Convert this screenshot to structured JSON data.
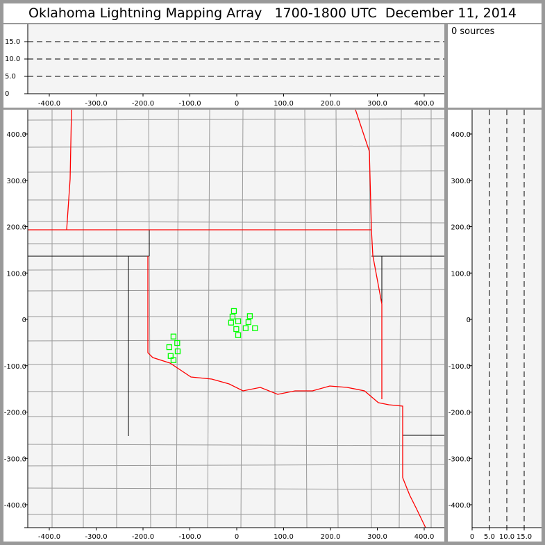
{
  "title": "Oklahoma Lightning Mapping Array   1700-1800 UTC  December 11, 2014",
  "source_count": "0 sources",
  "top_panel": {
    "y_ticks": [
      "0",
      "5.0",
      "10.0",
      "15.0"
    ],
    "x_ticks": [
      "-400.0",
      "-300.0",
      "-200.0",
      "-100.0",
      "0",
      "100.0",
      "200.0",
      "300.0",
      "400.0"
    ]
  },
  "map_panel": {
    "x_ticks": [
      "-400.0",
      "-300.0",
      "-200.0",
      "-100.0",
      "0",
      "100.0",
      "200.0",
      "300.0",
      "400.0"
    ],
    "y_ticks": [
      "400.0",
      "300.0",
      "200.0",
      "100.0",
      "0",
      "-100.0",
      "-200.0",
      "-300.0",
      "-400.0"
    ],
    "station_color": "#00ff00",
    "border_color": "#ff0000",
    "stations_km": [
      [
        -6,
        18
      ],
      [
        -9,
        6
      ],
      [
        28,
        7
      ],
      [
        -12,
        -7
      ],
      [
        3,
        -4
      ],
      [
        25,
        -6
      ],
      [
        -1,
        -21
      ],
      [
        19,
        -19
      ],
      [
        39,
        -19
      ],
      [
        3,
        -34
      ],
      [
        -135,
        -37
      ],
      [
        -127,
        -51
      ],
      [
        -144,
        -60
      ],
      [
        -126,
        -69
      ],
      [
        -141,
        -79
      ],
      [
        -135,
        -88
      ]
    ]
  },
  "side_panel": {
    "x_ticks": [
      "0",
      "5.0",
      "10.0",
      "15.0"
    ],
    "y_ticks": [
      "400.0",
      "300.0",
      "200.0",
      "100.0",
      "0",
      "-100.0",
      "-200.0",
      "-300.0",
      "-400.0"
    ]
  }
}
